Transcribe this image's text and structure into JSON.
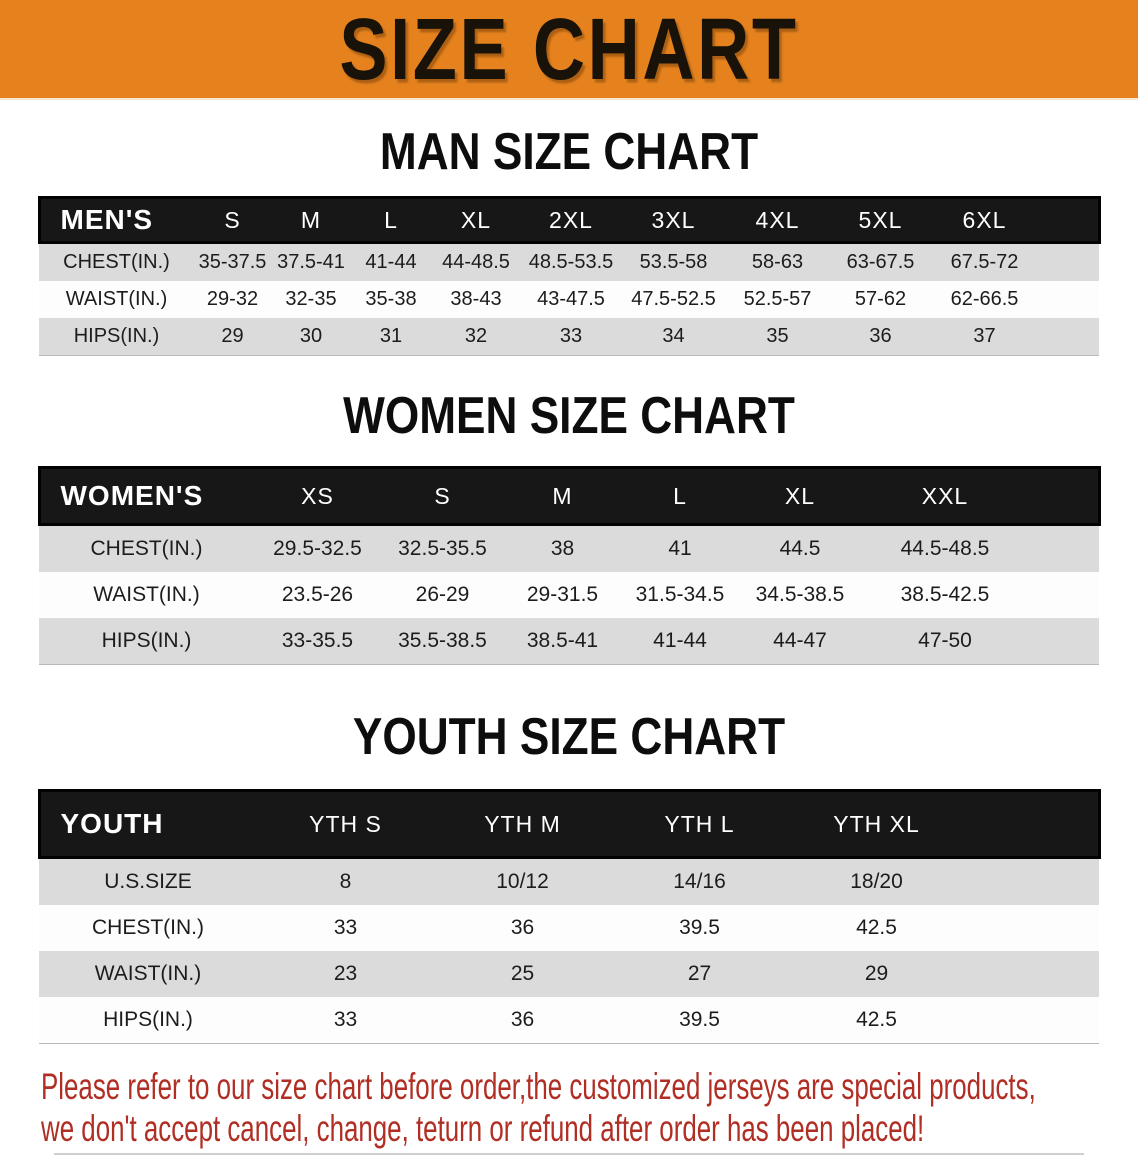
{
  "banner": {
    "title": "SIZE CHART",
    "bg_color": "#E5821E"
  },
  "sections": [
    {
      "heading": "MAN SIZE CHART",
      "table": {
        "name": "mens",
        "label": "MEN'S",
        "columns": [
          "S",
          "M",
          "L",
          "XL",
          "2XL",
          "3XL",
          "4XL",
          "5XL",
          "6XL"
        ],
        "rows": [
          {
            "label": "CHEST(IN.)",
            "values": [
              "35-37.5",
              "37.5-41",
              "41-44",
              "44-48.5",
              "48.5-53.5",
              "53.5-58",
              "58-63",
              "63-67.5",
              "67.5-72"
            ]
          },
          {
            "label": "WAIST(IN.)",
            "values": [
              "29-32",
              "32-35",
              "35-38",
              "38-43",
              "43-47.5",
              "47.5-52.5",
              "52.5-57",
              "57-62",
              "62-66.5"
            ]
          },
          {
            "label": "HIPS(IN.)",
            "values": [
              "29",
              "30",
              "31",
              "32",
              "33",
              "34",
              "35",
              "36",
              "37"
            ]
          }
        ]
      }
    },
    {
      "heading": "WOMEN SIZE CHART",
      "table": {
        "name": "womens",
        "label": "WOMEN'S",
        "columns": [
          "XS",
          "S",
          "M",
          "L",
          "XL",
          "XXL"
        ],
        "rows": [
          {
            "label": "CHEST(IN.)",
            "values": [
              "29.5-32.5",
              "32.5-35.5",
              "38",
              "41",
              "44.5",
              "44.5-48.5"
            ]
          },
          {
            "label": "WAIST(IN.)",
            "values": [
              "23.5-26",
              "26-29",
              "29-31.5",
              "31.5-34.5",
              "34.5-38.5",
              "38.5-42.5"
            ]
          },
          {
            "label": "HIPS(IN.)",
            "values": [
              "33-35.5",
              "35.5-38.5",
              "38.5-41",
              "41-44",
              "44-47",
              "47-50"
            ]
          }
        ]
      }
    },
    {
      "heading": "YOUTH SIZE CHART",
      "table": {
        "name": "youth",
        "label": "YOUTH",
        "columns": [
          "YTH S",
          "YTH M",
          "YTH L",
          "YTH XL"
        ],
        "rows": [
          {
            "label": "U.S.SIZE",
            "values": [
              "8",
              "10/12",
              "14/16",
              "18/20"
            ]
          },
          {
            "label": "CHEST(IN.)",
            "values": [
              "33",
              "36",
              "39.5",
              "42.5"
            ]
          },
          {
            "label": "WAIST(IN.)",
            "values": [
              "23",
              "25",
              "27",
              "29"
            ]
          },
          {
            "label": "HIPS(IN.)",
            "values": [
              "33",
              "36",
              "39.5",
              "42.5"
            ]
          }
        ]
      }
    }
  ],
  "footer": {
    "lines": [
      "Please refer to our size chart before order,the customized jerseys are special products,",
      "we don't accept cancel, change, teturn or refund after order has been placed!"
    ],
    "text_color": "#B02E24"
  },
  "chart_data": [
    {
      "type": "table",
      "title": "MAN SIZE CHART",
      "columns": [
        "MEN'S",
        "S",
        "M",
        "L",
        "XL",
        "2XL",
        "3XL",
        "4XL",
        "5XL",
        "6XL"
      ],
      "rows": [
        [
          "CHEST(IN.)",
          "35-37.5",
          "37.5-41",
          "41-44",
          "44-48.5",
          "48.5-53.5",
          "53.5-58",
          "58-63",
          "63-67.5",
          "67.5-72"
        ],
        [
          "WAIST(IN.)",
          "29-32",
          "32-35",
          "35-38",
          "38-43",
          "43-47.5",
          "47.5-52.5",
          "52.5-57",
          "57-62",
          "62-66.5"
        ],
        [
          "HIPS(IN.)",
          "29",
          "30",
          "31",
          "32",
          "33",
          "34",
          "35",
          "36",
          "37"
        ]
      ]
    },
    {
      "type": "table",
      "title": "WOMEN SIZE CHART",
      "columns": [
        "WOMEN'S",
        "XS",
        "S",
        "M",
        "L",
        "XL",
        "XXL"
      ],
      "rows": [
        [
          "CHEST(IN.)",
          "29.5-32.5",
          "32.5-35.5",
          "38",
          "41",
          "44.5",
          "44.5-48.5"
        ],
        [
          "WAIST(IN.)",
          "23.5-26",
          "26-29",
          "29-31.5",
          "31.5-34.5",
          "34.5-38.5",
          "38.5-42.5"
        ],
        [
          "HIPS(IN.)",
          "33-35.5",
          "35.5-38.5",
          "38.5-41",
          "41-44",
          "44-47",
          "47-50"
        ]
      ]
    },
    {
      "type": "table",
      "title": "YOUTH SIZE CHART",
      "columns": [
        "YOUTH",
        "YTH S",
        "YTH M",
        "YTH L",
        "YTH XL"
      ],
      "rows": [
        [
          "U.S.SIZE",
          "8",
          "10/12",
          "14/16",
          "18/20"
        ],
        [
          "CHEST(IN.)",
          "33",
          "36",
          "39.5",
          "42.5"
        ],
        [
          "WAIST(IN.)",
          "23",
          "25",
          "27",
          "29"
        ],
        [
          "HIPS(IN.)",
          "33",
          "36",
          "39.5",
          "42.5"
        ]
      ]
    }
  ]
}
